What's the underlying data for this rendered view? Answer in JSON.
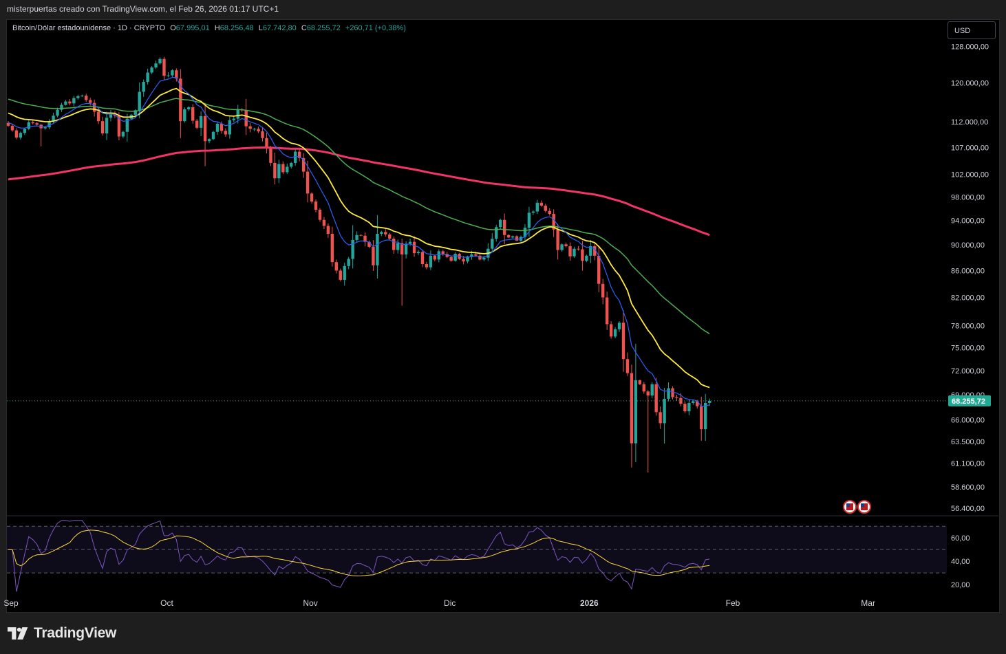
{
  "header": {
    "caption": "misterpuertas creado con TradingView.com, el Feb 26, 2026 01:17 UTC+1"
  },
  "symbol": {
    "title": "Bitcoin/Dólar estadounidense · 1D · CRYPTO",
    "open_label": "O",
    "open": "67.995,01",
    "high_label": "H",
    "high": "68.256,48",
    "low_label": "L",
    "low": "67.742,80",
    "close_label": "C",
    "close": "68.255,72",
    "change": "+260,71 (+0,38%)"
  },
  "currency_button": "USD",
  "footer": {
    "brand": "TradingView"
  },
  "colors": {
    "up": "#26a69a",
    "down": "#ef5350",
    "ema_fast": "#2962ff",
    "ema_mid": "#ffeb3b",
    "ema_slow": "#4caf50",
    "ema_200": "#f23468",
    "rsi": "#7e57c2",
    "rsi_ma": "#fdd835"
  },
  "chart_data": [
    {
      "type": "candlestick",
      "title": "Bitcoin/Dólar estadounidense · 1D · CRYPTO",
      "scale": "log",
      "y_ticks": [
        "128.000,00",
        "120.000,00",
        "112.000,00",
        "107.000,00",
        "102.000,00",
        "98.000,00",
        "94.000,00",
        "90.000,00",
        "86.000,00",
        "82.000,00",
        "78.000,00",
        "75.000,00",
        "72.000,00",
        "69.000,00",
        "66.000,00",
        "63.500,00",
        "61.100,00",
        "58.600,00",
        "56.400,00"
      ],
      "y_tick_values": [
        128000,
        120000,
        112000,
        107000,
        102000,
        98000,
        94000,
        90000,
        86000,
        82000,
        78000,
        75000,
        72000,
        69000,
        66000,
        63500,
        61100,
        58600,
        56400
      ],
      "ylim": [
        55800,
        134000
      ],
      "x_ticks": [
        "Sep",
        "Oct",
        "Nov",
        "Dic",
        "2026",
        "Feb",
        "Mar"
      ],
      "last_price_label": "68.255,72",
      "last_price": 68255.72,
      "close_series": [
        111200,
        110300,
        108900,
        109800,
        110600,
        111900,
        111700,
        111400,
        110700,
        110900,
        112100,
        113200,
        114400,
        115400,
        116100,
        115700,
        116800,
        117200,
        117300,
        116400,
        115800,
        114000,
        112100,
        109700,
        112800,
        113600,
        113200,
        109100,
        110000,
        112600,
        113400,
        114300,
        118100,
        120200,
        122200,
        123300,
        124200,
        125200,
        121500,
        121600,
        122700,
        120900,
        112100,
        114500,
        114900,
        112200,
        110800,
        113100,
        108200,
        108600,
        110000,
        111600,
        110200,
        109500,
        112300,
        112600,
        114400,
        114300,
        111100,
        110600,
        110600,
        110100,
        108800,
        106800,
        104100,
        101300,
        103900,
        102400,
        103400,
        104100,
        106200,
        105000,
        102500,
        98600,
        97200,
        95800,
        94100,
        93100,
        91800,
        87300,
        86000,
        84600,
        86700,
        87800,
        90800,
        91600,
        91500,
        90500,
        89700,
        86800,
        91800,
        92100,
        91700,
        91000,
        89200,
        90300,
        88500,
        90200,
        90500,
        88700,
        88900,
        87000,
        86500,
        88300,
        87700,
        89000,
        88600,
        88100,
        87500,
        88600,
        87800,
        87400,
        88200,
        88500,
        88300,
        87700,
        88000,
        89400,
        91000,
        92900,
        94100,
        91600,
        91200,
        91400,
        90700,
        91300,
        92800,
        95300,
        95500,
        97000,
        96500,
        95600,
        95100,
        92500,
        89200,
        90100,
        89800,
        88200,
        89400,
        89300,
        87500,
        88300,
        89800,
        88300,
        84000,
        82000,
        78200,
        76500,
        77500,
        78400,
        73500,
        71700,
        63300,
        70800,
        70300,
        69400,
        68900,
        70300,
        66900,
        65600,
        68500,
        69800,
        68700,
        68600,
        67900,
        67000,
        68000,
        68200,
        67600,
        64900,
        67995,
        68255.72
      ],
      "series": [
        {
          "name": "EMA 200",
          "values": "end≈97600"
        },
        {
          "name": "EMA 50",
          "values": "end≈79200"
        },
        {
          "name": "EMA 20",
          "values": "end≈69300"
        }
      ]
    },
    {
      "type": "line",
      "title": "RSI",
      "y_ticks": [
        "60,00",
        "40,00",
        "20,00"
      ],
      "y_tick_values": [
        60,
        40,
        20
      ],
      "ylim": [
        13,
        76
      ],
      "bands": [
        70,
        50,
        30
      ]
    }
  ]
}
